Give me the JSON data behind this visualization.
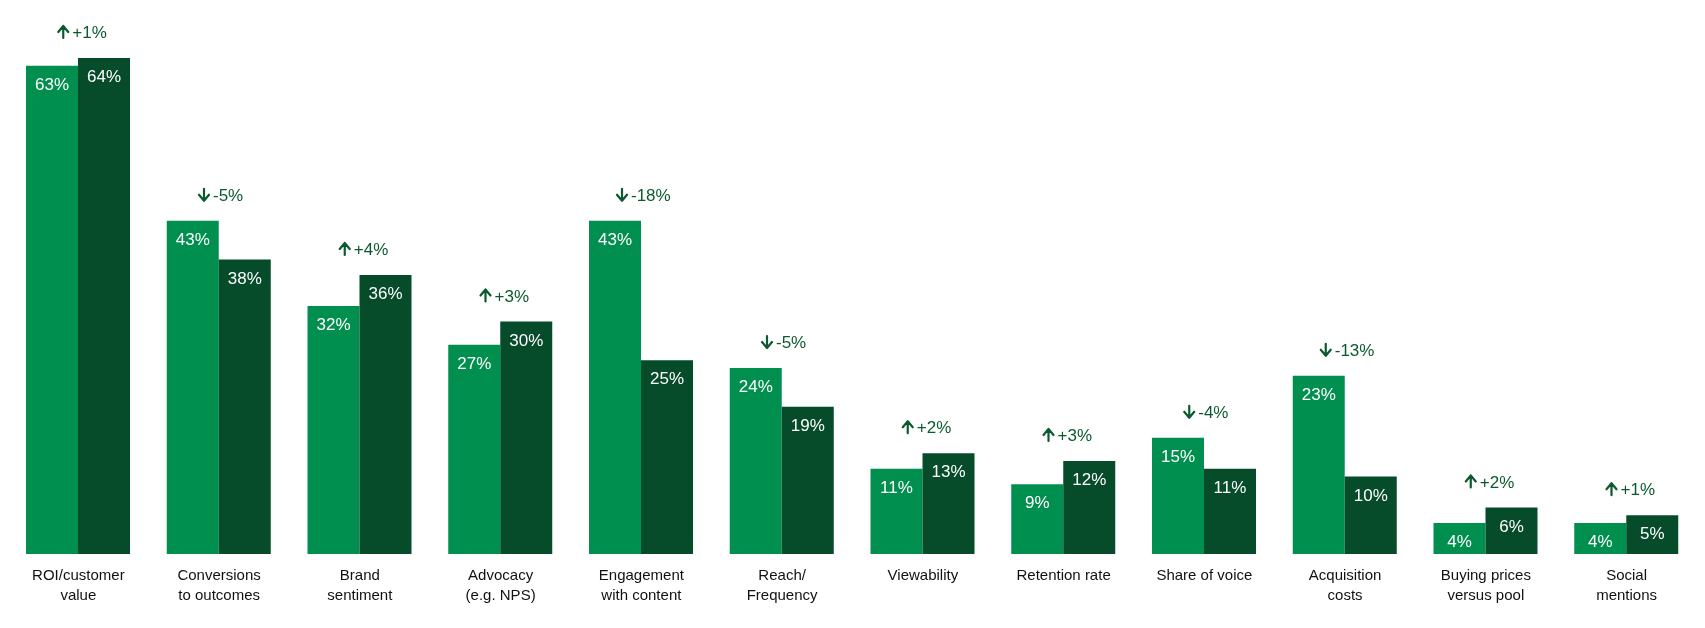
{
  "chart_data": {
    "type": "bar",
    "categories": [
      "ROI/customer value",
      "Conversions to outcomes",
      "Brand sentiment",
      "Advocacy (e.g. NPS)",
      "Engagement with content",
      "Reach/ Frequency",
      "Viewability",
      "Retention rate",
      "Share of voice",
      "Acquisition costs",
      "Buying prices versus pool",
      "Social mentions"
    ],
    "series": [
      {
        "color": "#008f4f",
        "values": [
          63,
          43,
          32,
          27,
          43,
          24,
          11,
          9,
          15,
          23,
          4,
          4
        ],
        "value_labels": [
          "63%",
          "43%",
          "32%",
          "27%",
          "43%",
          "24%",
          "11%",
          "9%",
          "15%",
          "23%",
          "4%",
          "4%"
        ]
      },
      {
        "color": "#064b2a",
        "values": [
          64,
          38,
          36,
          30,
          25,
          19,
          13,
          12,
          11,
          10,
          6,
          5
        ],
        "value_labels": [
          "64%",
          "38%",
          "36%",
          "30%",
          "25%",
          "19%",
          "13%",
          "12%",
          "11%",
          "10%",
          "6%",
          "5%"
        ]
      }
    ],
    "tick_labels": "x",
    "grid": false,
    "legend": false,
    "annotations": [
      {
        "text": "+1%",
        "x": "ROI/customer value",
        "y": 64
      },
      {
        "text": "-5%",
        "x": "Conversions to outcomes",
        "y": 43
      },
      {
        "text": "+4%",
        "x": "Brand sentiment",
        "y": 36
      },
      {
        "text": "+3%",
        "x": "Advocacy (e.g. NPS)",
        "y": 30
      },
      {
        "text": "-18%",
        "x": "Engagement with content",
        "y": 43
      },
      {
        "text": "-5%",
        "x": "Reach/ Frequency",
        "y": 24
      },
      {
        "text": "+2%",
        "x": "Viewability",
        "y": 13
      },
      {
        "text": "+3%",
        "x": "Retention rate",
        "y": 12
      },
      {
        "text": "-4%",
        "x": "Share of voice",
        "y": 15
      },
      {
        "text": "-13%",
        "x": "Acquisition costs",
        "y": 23
      },
      {
        "text": "+2%",
        "x": "Buying prices versus pool",
        "y": 6
      },
      {
        "text": "+1%",
        "x": "Social mentions",
        "y": 5
      }
    ]
  }
}
